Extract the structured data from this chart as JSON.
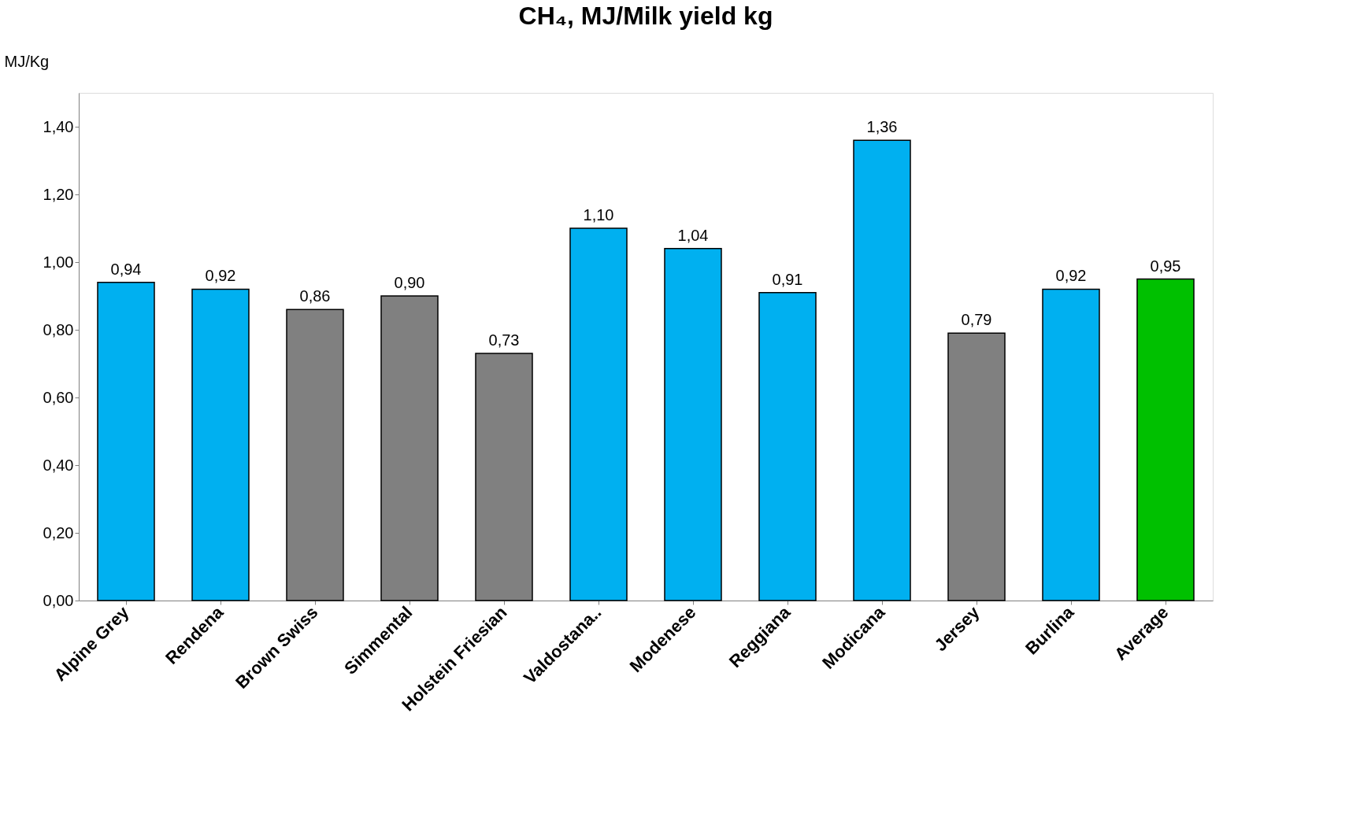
{
  "chart_data": {
    "type": "bar",
    "title": "CH₄, MJ/Milk yield kg",
    "ylabel": "MJ/Kg",
    "categories": [
      "Alpine Grey",
      "Rendena",
      "Brown Swiss",
      "Simmental",
      "Holstein Friesian",
      "Valdostana..",
      "Modenese",
      "Reggiana",
      "Modicana",
      "Jersey",
      "Burlina",
      "Average"
    ],
    "values": [
      0.94,
      0.92,
      0.86,
      0.9,
      0.73,
      1.1,
      1.04,
      0.91,
      1.36,
      0.79,
      0.92,
      0.95
    ],
    "colors": [
      "#00b0f0",
      "#00b0f0",
      "#808080",
      "#808080",
      "#808080",
      "#00b0f0",
      "#00b0f0",
      "#00b0f0",
      "#00b0f0",
      "#808080",
      "#00b0f0",
      "#00c000"
    ],
    "value_labels": [
      "0,94",
      "0,92",
      "0,86",
      "0,90",
      "0,73",
      "1,10",
      "1,04",
      "0,91",
      "1,36",
      "0,79",
      "0,92",
      "0,95"
    ],
    "ylim": [
      0,
      1.5
    ],
    "yticks": [
      {
        "value": 0,
        "label": "0,00"
      },
      {
        "value": 0.2,
        "label": "0,20"
      },
      {
        "value": 0.4,
        "label": "0,40"
      },
      {
        "value": 0.6,
        "label": "0,60"
      },
      {
        "value": 0.8,
        "label": "0,80"
      },
      {
        "value": 1.0,
        "label": "1,00"
      },
      {
        "value": 1.2,
        "label": "1,20"
      },
      {
        "value": 1.4,
        "label": "1,40"
      }
    ],
    "grid": false
  }
}
